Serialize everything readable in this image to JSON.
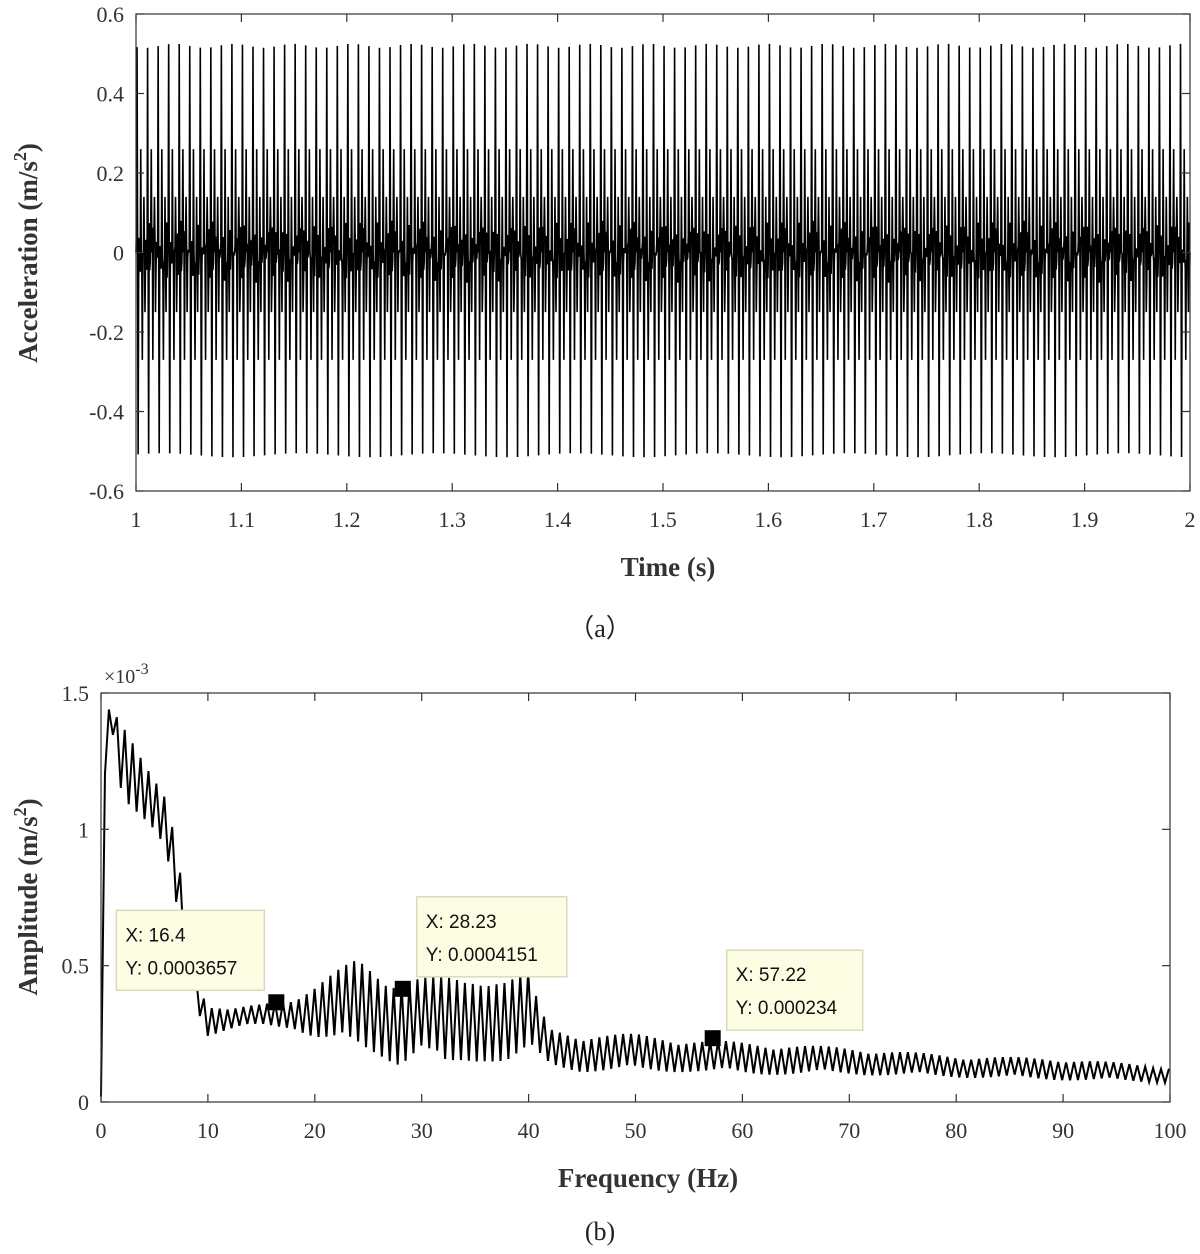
{
  "chart_data": [
    {
      "type": "line",
      "panel_label": "（a）",
      "xlabel": "Time (s)",
      "ylabel": "Acceleration (m/s",
      "ylabel_superscript": "2",
      "ylabel_suffix": ")",
      "xlim": [
        1,
        2
      ],
      "ylim": [
        -0.6,
        0.6
      ],
      "xticks": [
        1,
        1.1,
        1.2,
        1.3,
        1.4,
        1.5,
        1.6,
        1.7,
        1.8,
        1.9,
        2
      ],
      "xtick_labels": [
        "1",
        "1.1",
        "1.2",
        "1.3",
        "1.4",
        "1.5",
        "1.6",
        "1.7",
        "1.8",
        "1.9",
        "2"
      ],
      "yticks": [
        -0.6,
        -0.4,
        -0.2,
        0,
        0.2,
        0.4,
        0.6
      ],
      "ytick_labels": [
        "-0.6",
        "-0.4",
        "-0.2",
        "0",
        "0.2",
        "0.4",
        "0.6"
      ],
      "signal": {
        "description_free": true,
        "peak_amplitude": 0.52,
        "trough_amplitude": -0.51,
        "cycles_per_second": 100
      }
    },
    {
      "type": "line",
      "panel_label": "(b)",
      "xlabel": "Frequency (Hz)",
      "ylabel": "Amplitude (m/s",
      "ylabel_superscript": "2",
      "ylabel_suffix": ")",
      "y_exponent": "×10",
      "y_exponent_power": "-3",
      "xlim": [
        0,
        100
      ],
      "ylim": [
        0,
        1.5
      ],
      "xticks": [
        0,
        10,
        20,
        30,
        40,
        50,
        60,
        70,
        80,
        90,
        100
      ],
      "xtick_labels": [
        "0",
        "10",
        "20",
        "30",
        "40",
        "50",
        "60",
        "70",
        "80",
        "90",
        "100"
      ],
      "yticks": [
        0,
        0.5,
        1,
        1.5
      ],
      "ytick_labels": [
        "0",
        "0.5",
        "1",
        "1.5"
      ],
      "spectrum_envelope": {
        "x": [
          0,
          0.4,
          0.8,
          2,
          4,
          6,
          7,
          8,
          9,
          10,
          12,
          15,
          18,
          20,
          22,
          24,
          26,
          28,
          30,
          32,
          34,
          36,
          38,
          40,
          41,
          42,
          45,
          50,
          55,
          60,
          70,
          80,
          90,
          100
        ],
        "y": [
          0,
          1.3,
          1.45,
          1.25,
          1.12,
          1.02,
          0.85,
          0.6,
          0.4,
          0.3,
          0.3,
          0.32,
          0.33,
          0.33,
          0.34,
          0.36,
          0.33,
          0.3,
          0.32,
          0.28,
          0.3,
          0.32,
          0.3,
          0.32,
          0.25,
          0.2,
          0.18,
          0.18,
          0.17,
          0.16,
          0.15,
          0.13,
          0.12,
          0.1
        ],
        "swing": [
          0,
          0,
          0.02,
          0.15,
          0.12,
          0.1,
          0.12,
          0.1,
          0.06,
          0.06,
          0.04,
          0.04,
          0.06,
          0.1,
          0.14,
          0.17,
          0.16,
          0.17,
          0.14,
          0.18,
          0.16,
          0.17,
          0.16,
          0.16,
          0.1,
          0.07,
          0.07,
          0.07,
          0.06,
          0.06,
          0.05,
          0.04,
          0.04,
          0.03
        ]
      },
      "datatips": [
        {
          "x": 16.4,
          "y": 0.3657,
          "label_x": "X: 16.4",
          "label_y": "Y: 0.0003657"
        },
        {
          "x": 28.23,
          "y": 0.4151,
          "label_x": "X: 28.23",
          "label_y": "Y: 0.0004151"
        },
        {
          "x": 57.22,
          "y": 0.234,
          "label_x": "X: 57.22",
          "label_y": "Y: 0.000234"
        }
      ]
    }
  ]
}
